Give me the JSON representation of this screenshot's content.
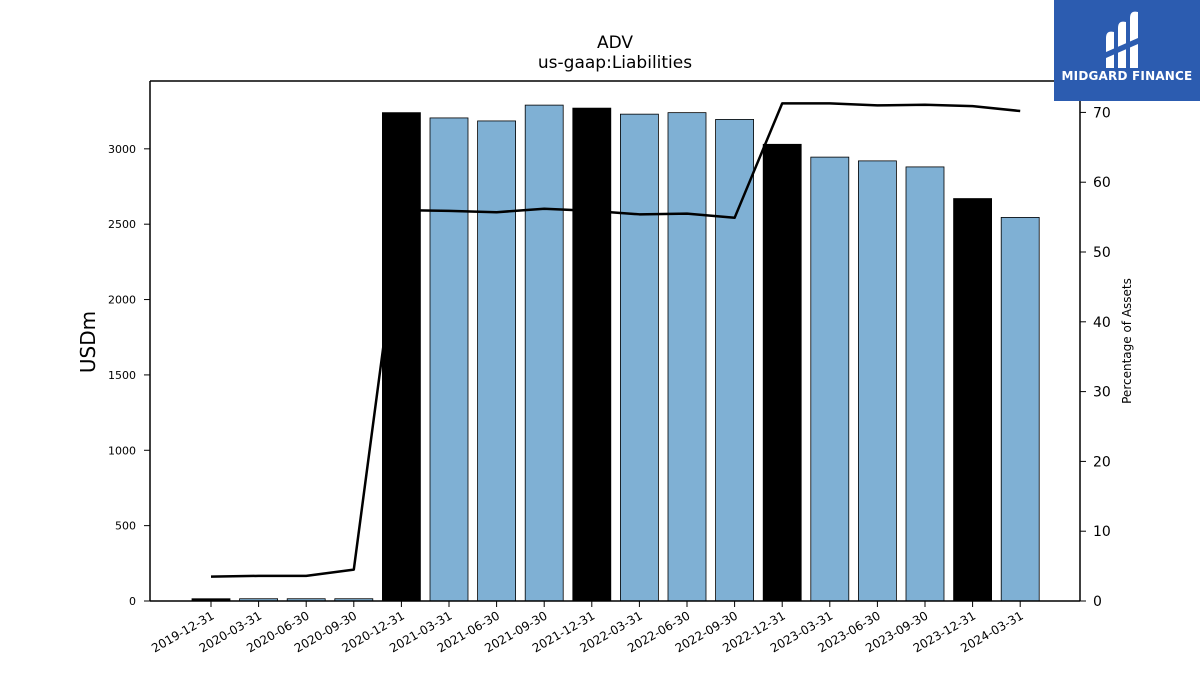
{
  "chart_data": {
    "type": "bar",
    "title": "ADV",
    "subtitle": "us-gaap:Liabilities",
    "ylabel": "USDm",
    "y2label": "Percentage of Assets",
    "ylim": [
      0,
      3450
    ],
    "y2lim": [
      0,
      74.5
    ],
    "yticks": [
      0,
      500,
      1000,
      1500,
      2000,
      2500,
      3000
    ],
    "y2ticks": [
      0,
      10,
      20,
      30,
      40,
      50,
      60,
      70
    ],
    "categories": [
      "2019-12-31",
      "2020-03-31",
      "2020-06-30",
      "2020-09-30",
      "2020-12-31",
      "2021-03-31",
      "2021-06-30",
      "2021-09-30",
      "2021-12-31",
      "2022-03-31",
      "2022-06-30",
      "2022-09-30",
      "2022-12-31",
      "2023-03-31",
      "2023-06-30",
      "2023-09-30",
      "2023-12-31",
      "2024-03-31"
    ],
    "series": [
      {
        "values": [
          15,
          15,
          15,
          15,
          3240,
          3205,
          3185,
          3290,
          3270,
          3230,
          3240,
          3195,
          3030,
          2945,
          2920,
          2880,
          2670,
          2545
        ],
        "highlight": [
          true,
          false,
          false,
          false,
          true,
          false,
          false,
          false,
          true,
          false,
          false,
          false,
          true,
          false,
          false,
          false,
          true,
          false
        ],
        "color": "#7fb0d4",
        "highlight_color": "#000000",
        "axis": "left"
      },
      {
        "values": [
          3.5,
          3.6,
          3.6,
          4.5,
          56.0,
          55.9,
          55.7,
          56.2,
          55.9,
          55.4,
          55.5,
          54.9,
          71.3,
          71.3,
          71.0,
          71.1,
          70.9,
          70.2
        ],
        "color": "#000000",
        "type": "line",
        "axis": "right"
      }
    ]
  },
  "logo": {
    "text": "MIDGARD FINANCE"
  }
}
